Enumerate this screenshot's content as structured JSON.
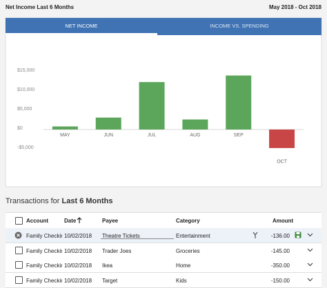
{
  "header": {
    "title": "Net Income Last 6 Months",
    "date_range": "May 2018 - Oct 2018"
  },
  "tabs": [
    "NET INCOME",
    "INCOME VS. SPENDING"
  ],
  "chart_data": {
    "type": "bar",
    "categories": [
      "MAY",
      "JUN",
      "JUL",
      "AUG",
      "SEP",
      "OCT"
    ],
    "values": [
      800,
      3100,
      12300,
      2600,
      14000,
      -4800
    ],
    "colors": {
      "positive": "#5ba65b",
      "negative": "#c94646"
    },
    "ylim": [
      -5000,
      15000
    ],
    "yticks": [
      {
        "value": -5000,
        "label": "-$5,000"
      },
      {
        "value": 0,
        "label": "$0"
      },
      {
        "value": 5000,
        "label": "$5,000"
      },
      {
        "value": 10000,
        "label": "$10,000"
      },
      {
        "value": 15000,
        "label": "$15,000"
      }
    ]
  },
  "transactions": {
    "title_prefix": "Transactions for",
    "title_period": "Last 6 Months",
    "columns": [
      "Account",
      "Date",
      "Payee",
      "Category",
      "Amount"
    ],
    "rows": [
      [
        "Family Checking",
        "10/02/2018",
        "Theatre Tickets",
        "Entertainment",
        "-136.00"
      ],
      [
        "Family Checkin",
        "10/02/2018",
        "Trader Joes",
        "Groceries",
        "-145.00"
      ],
      [
        "Family Checkin",
        "10/02/2018",
        "Ikea",
        "Home",
        "-350.00"
      ],
      [
        "Family Checkin",
        "10/02/2018",
        "Target",
        "Kids",
        "-150.00"
      ]
    ]
  }
}
